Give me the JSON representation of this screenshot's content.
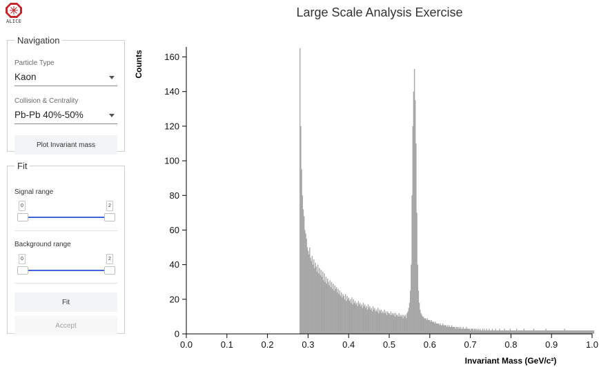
{
  "logo": {
    "text": "ALICE"
  },
  "title": "Large Scale Analysis Exercise",
  "navigation": {
    "legend": "Navigation",
    "particle_type": {
      "label": "Particle Type",
      "value": "Kaon"
    },
    "collision": {
      "label": "Collision & Centrality",
      "value": "Pb-Pb 40%-50%"
    },
    "plot_button": "Plot Invariant mass"
  },
  "fit": {
    "legend": "Fit",
    "signal_range": {
      "label": "Signal range",
      "min": "0",
      "max": "2"
    },
    "background_range": {
      "label": "Background range",
      "min": "0",
      "max": "2"
    },
    "fit_button": "Fit",
    "accept_button": "Accept"
  },
  "colors": {
    "bar": "#a6a6a6",
    "accent": "#3b64db",
    "logo": "#c0282d"
  },
  "chart_data": {
    "type": "bar",
    "title": "",
    "xlabel": "Invariant Mass (GeV/c²)",
    "ylabel": "Counts",
    "xlim": [
      0,
      1.0
    ],
    "ylim": [
      0,
      165
    ],
    "xticks": [
      "0.0",
      "0.1",
      "0.2",
      "0.3",
      "0.4",
      "0.5",
      "0.6",
      "0.7",
      "0.8",
      "0.9",
      "1.0"
    ],
    "yticks": [
      "0",
      "20",
      "40",
      "60",
      "80",
      "100",
      "120",
      "140",
      "160"
    ],
    "bin_width": 0.002,
    "x_start": 0.279,
    "values": [
      165,
      120,
      95,
      80,
      72,
      68,
      60,
      58,
      55,
      50,
      48,
      46,
      50,
      44,
      42,
      45,
      40,
      43,
      38,
      41,
      39,
      36,
      40,
      35,
      38,
      34,
      37,
      33,
      36,
      31,
      35,
      30,
      33,
      29,
      32,
      30,
      28,
      31,
      27,
      30,
      26,
      29,
      25,
      28,
      26,
      27,
      24,
      26,
      23,
      25,
      22,
      24,
      21,
      23,
      22,
      20,
      23,
      19,
      22,
      20,
      21,
      19,
      20,
      18,
      21,
      17,
      20,
      18,
      19,
      17,
      18,
      16,
      19,
      17,
      18,
      16,
      17,
      15,
      18,
      16,
      17,
      15,
      16,
      14,
      17,
      15,
      16,
      14,
      15,
      13,
      16,
      14,
      15,
      13,
      14,
      13,
      15,
      12,
      14,
      13,
      14,
      12,
      13,
      12,
      14,
      12,
      13,
      11,
      13,
      12,
      12,
      11,
      13,
      11,
      12,
      11,
      12,
      10,
      12,
      11,
      11,
      10,
      12,
      10,
      11,
      10,
      11,
      9,
      11,
      10,
      11,
      9,
      12,
      13,
      15,
      18,
      25,
      40,
      80,
      120,
      140,
      153,
      135,
      110,
      70,
      40,
      25,
      18,
      14,
      12,
      11,
      10,
      10,
      9,
      9,
      9,
      8,
      9,
      8,
      8,
      8,
      7,
      8,
      7,
      7,
      7,
      6,
      7,
      6,
      6,
      6,
      6,
      5,
      6,
      5,
      5,
      6,
      5,
      5,
      5,
      5,
      4,
      5,
      4,
      5,
      4,
      4,
      5,
      4,
      4,
      4,
      4,
      3,
      4,
      4,
      3,
      4,
      3,
      4,
      3,
      3,
      4,
      3,
      3,
      3,
      4,
      3,
      3,
      3,
      3,
      2,
      3,
      3,
      3,
      2,
      3,
      3,
      2,
      3,
      2,
      3,
      2,
      3,
      2,
      2,
      3,
      2,
      3,
      2,
      2,
      3,
      2,
      2,
      3,
      2,
      2,
      2,
      3,
      2,
      2,
      2,
      3,
      2,
      2,
      2,
      2,
      3,
      2,
      2,
      2,
      2,
      2,
      3,
      2,
      2,
      2,
      2,
      2,
      2,
      3,
      2,
      2,
      2,
      2,
      2,
      2,
      2,
      3,
      2,
      2,
      2,
      2,
      2,
      2,
      2,
      2,
      3,
      2,
      2,
      2,
      2,
      2,
      2,
      2,
      2,
      2,
      2,
      2,
      3,
      2,
      2,
      2,
      2,
      2,
      2,
      2,
      2,
      2,
      2,
      2,
      2,
      2,
      2,
      3,
      2,
      2,
      2,
      2,
      2,
      2,
      2,
      2,
      2,
      2,
      2,
      2,
      2,
      2,
      2,
      2,
      2,
      2,
      2,
      2,
      2,
      2,
      3,
      2,
      2,
      2,
      2,
      2,
      2,
      2,
      2,
      2,
      2,
      2,
      2,
      2,
      2,
      2,
      2,
      2,
      2,
      2,
      2,
      2,
      2,
      2,
      2,
      2,
      2,
      2,
      2,
      2,
      2,
      2,
      2,
      2,
      2,
      2,
      2,
      2,
      2,
      2,
      2,
      2,
      2,
      2,
      2,
      2,
      2,
      2,
      2,
      2,
      2,
      2,
      2,
      2
    ]
  }
}
